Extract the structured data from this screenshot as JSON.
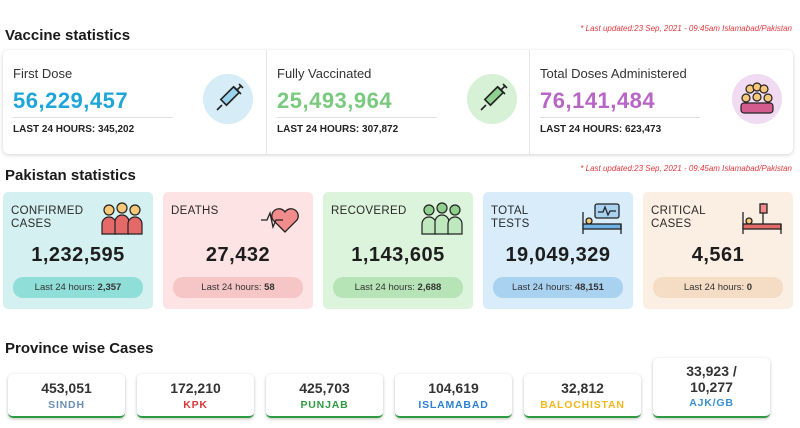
{
  "vaccine": {
    "title": "Vaccine statistics",
    "last_updated": "* Last updated:23 Sep, 2021 - 09:45am Islamabad/Pakistan",
    "cards": [
      {
        "label": "First Dose",
        "value": "56,229,457",
        "last24_label": "LAST 24 HOURS:",
        "last24": "345,202",
        "color": "#1fa6d9",
        "icon": "syringe-icon"
      },
      {
        "label": "Fully Vaccinated",
        "value": "25,493,964",
        "last24_label": "LAST 24 HOURS:",
        "last24": "307,872",
        "color": "#79c97f",
        "icon": "syringe-icon"
      },
      {
        "label": "Total Doses Administered",
        "value": "76,141,484",
        "last24_label": "LAST 24 HOURS:",
        "last24": "623,473",
        "color": "#b866c5",
        "icon": "crowd-icon"
      }
    ]
  },
  "pakistan": {
    "title": "Pakistan statistics",
    "last_updated": "* Last updated:23 Sep, 2021 - 09:45am Islamabad/Pakistan",
    "cards": [
      {
        "label_line1": "CONFIRMED",
        "label_line2": "CASES",
        "value": "1,232,595",
        "last24_label": "Last 24 hours:",
        "last24": "2,357",
        "bg": "#d4f0f0",
        "pill": "#8fded8",
        "icon": "people-icon"
      },
      {
        "label_line1": "DEATHS",
        "label_line2": "",
        "value": "27,432",
        "last24_label": "Last 24 hours:",
        "last24": "58",
        "bg": "#fde3e3",
        "pill": "#f6c6c6",
        "icon": "heartbeat-icon"
      },
      {
        "label_line1": "RECOVERED",
        "label_line2": "",
        "value": "1,143,605",
        "last24_label": "Last 24 hours:",
        "last24": "2,688",
        "bg": "#dcf3dc",
        "pill": "#b6e4b6",
        "icon": "recovered-people-icon"
      },
      {
        "label_line1": "TOTAL",
        "label_line2": "TESTS",
        "value": "19,049,329",
        "last24_label": "Last 24 hours:",
        "last24": "48,151",
        "bg": "#d8ecf9",
        "pill": "#a9d2f0",
        "icon": "hospital-bed-icon"
      },
      {
        "label_line1": "CRITICAL",
        "label_line2": "CASES",
        "value": "4,561",
        "last24_label": "Last 24 hours:",
        "last24": "0",
        "bg": "#fbeee2",
        "pill": "#f4dcc5",
        "icon": "critical-bed-icon"
      }
    ]
  },
  "province": {
    "title": "Province wise Cases",
    "cards": [
      {
        "value": "453,051",
        "value2": "",
        "name": "SINDH",
        "color": "#6a8fb3"
      },
      {
        "value": "172,210",
        "value2": "",
        "name": "KPK",
        "color": "#d9383a"
      },
      {
        "value": "425,703",
        "value2": "",
        "name": "PUNJAB",
        "color": "#2e9b43"
      },
      {
        "value": "104,619",
        "value2": "",
        "name": "ISLAMABAD",
        "color": "#2b7fd4"
      },
      {
        "value": "32,812",
        "value2": "",
        "name": "BALOCHISTAN",
        "color": "#f2b71a"
      },
      {
        "value": "33,923 /",
        "value2": "10,277",
        "name": "AJK/GB",
        "color": "#3a8fd0"
      }
    ]
  }
}
